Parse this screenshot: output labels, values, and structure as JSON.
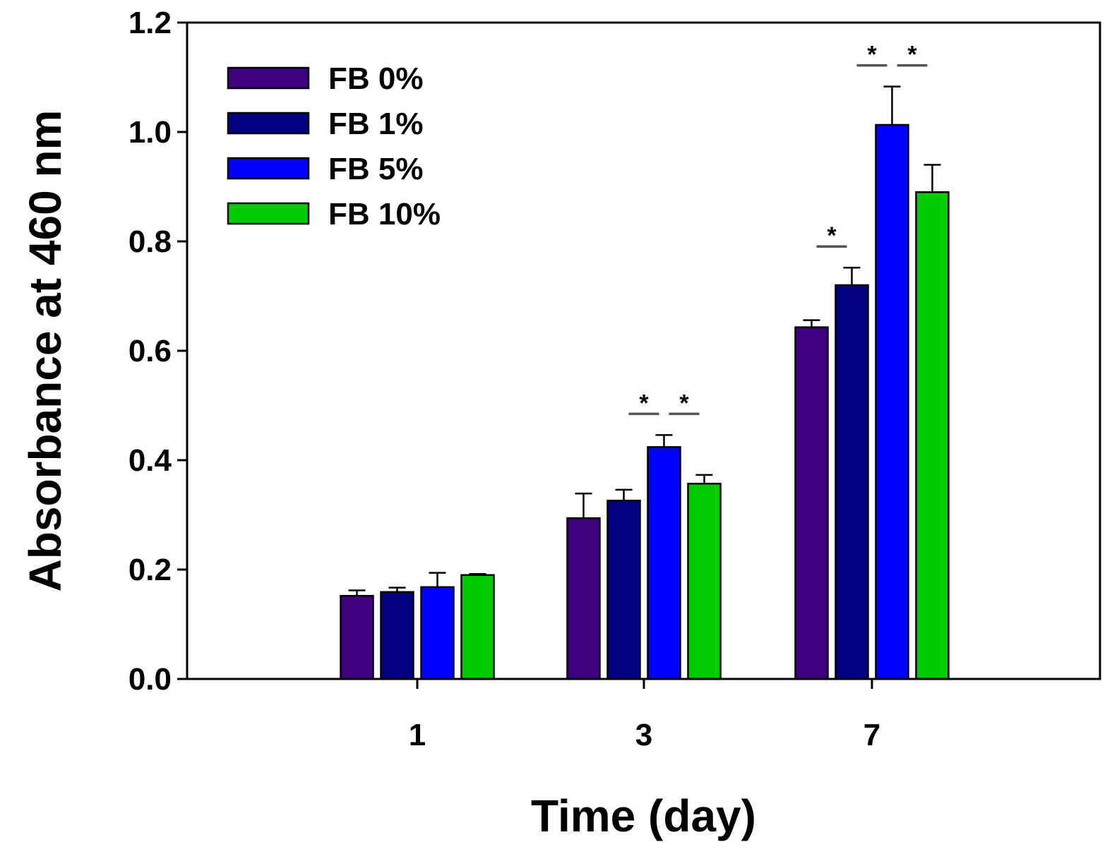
{
  "chart_data": {
    "type": "bar",
    "title": "",
    "xlabel": "Time (day)",
    "ylabel": "Absorbance at 460 nm",
    "ylim": [
      0,
      1.2
    ],
    "yticks": [
      "0.0",
      "0.2",
      "0.4",
      "0.6",
      "0.8",
      "1.0",
      "1.2"
    ],
    "categories": [
      "1",
      "3",
      "7"
    ],
    "legend_position": "top-left",
    "grid": false,
    "series": [
      {
        "name": "FB 0%",
        "color": "#3f007f",
        "values": [
          0.152,
          0.294,
          0.643
        ],
        "errors": [
          0.01,
          0.045,
          0.013
        ]
      },
      {
        "name": "FB 1%",
        "color": "#000080",
        "values": [
          0.159,
          0.326,
          0.72
        ],
        "errors": [
          0.008,
          0.02,
          0.032
        ]
      },
      {
        "name": "FB 5%",
        "color": "#0000ff",
        "values": [
          0.168,
          0.424,
          1.013
        ],
        "errors": [
          0.026,
          0.022,
          0.07
        ]
      },
      {
        "name": "FB 10%",
        "color": "#00cc00",
        "values": [
          0.19,
          0.357,
          0.89
        ],
        "errors": [
          0.002,
          0.016,
          0.05
        ]
      }
    ],
    "significance": [
      {
        "category": "3",
        "from_series": 1,
        "to_series": 2,
        "label": "*"
      },
      {
        "category": "3",
        "from_series": 2,
        "to_series": 3,
        "label": "*"
      },
      {
        "category": "7",
        "from_series": 0,
        "to_series": 1,
        "label": "*"
      },
      {
        "category": "7",
        "from_series": 1,
        "to_series": 2,
        "label": "*"
      },
      {
        "category": "7",
        "from_series": 2,
        "to_series": 3,
        "label": "*"
      }
    ]
  }
}
